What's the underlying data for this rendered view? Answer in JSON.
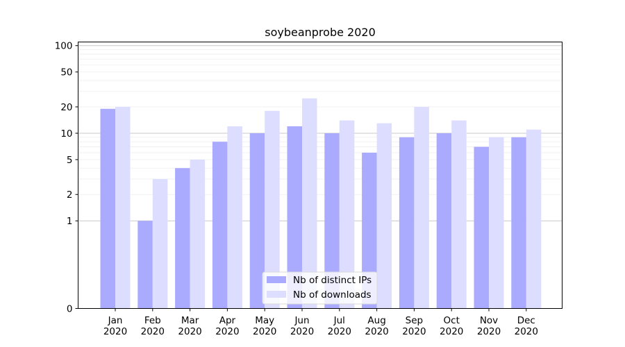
{
  "chart_data": {
    "type": "bar",
    "title": "soybeanprobe 2020",
    "xlabel": "",
    "ylabel": "",
    "categories": [
      {
        "month": "Jan",
        "year": "2020"
      },
      {
        "month": "Feb",
        "year": "2020"
      },
      {
        "month": "Mar",
        "year": "2020"
      },
      {
        "month": "Apr",
        "year": "2020"
      },
      {
        "month": "May",
        "year": "2020"
      },
      {
        "month": "Jun",
        "year": "2020"
      },
      {
        "month": "Jul",
        "year": "2020"
      },
      {
        "month": "Aug",
        "year": "2020"
      },
      {
        "month": "Sep",
        "year": "2020"
      },
      {
        "month": "Oct",
        "year": "2020"
      },
      {
        "month": "Nov",
        "year": "2020"
      },
      {
        "month": "Dec",
        "year": "2020"
      }
    ],
    "series": [
      {
        "name": "Nb of distinct IPs",
        "color": "#aaaaff",
        "values": [
          19,
          1,
          4,
          8,
          10,
          12,
          10,
          6,
          9,
          10,
          7,
          9
        ]
      },
      {
        "name": "Nb of downloads",
        "color": "#ddddff",
        "values": [
          20,
          3,
          5,
          12,
          18,
          25,
          14,
          13,
          20,
          14,
          9,
          11
        ]
      }
    ],
    "yscale": "symlog",
    "ylim": [
      0,
      110
    ],
    "yticks": [
      0,
      1,
      2,
      5,
      10,
      20,
      50,
      100
    ],
    "grid": true,
    "legend_position": "lower-center"
  }
}
